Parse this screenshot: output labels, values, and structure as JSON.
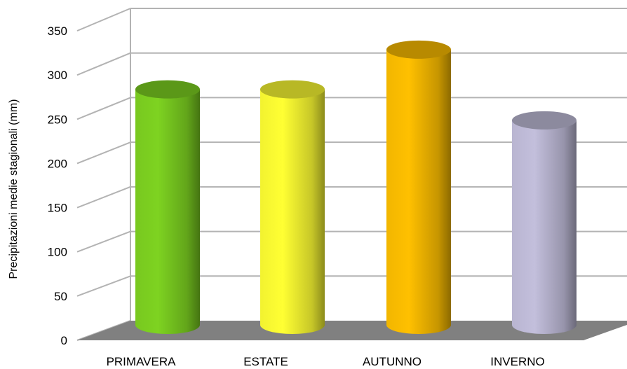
{
  "chart_data": {
    "type": "bar",
    "style": "3d-cylinder",
    "categories": [
      "PRIMAVERA",
      "ESTATE",
      "AUTUNNO",
      "INVERNO"
    ],
    "values": [
      260,
      260,
      305,
      225
    ],
    "colors": [
      "#7ed321",
      "#ffff33",
      "#ffc000",
      "#c3bfdc"
    ],
    "ylabel": "Precipitazioni medie stagionali (mm)",
    "xlabel": "",
    "title": "",
    "ylim": [
      0,
      350
    ],
    "yticks": [
      0,
      50,
      100,
      150,
      200,
      250,
      300,
      350
    ],
    "grid": true,
    "floor_color": "#808080"
  }
}
